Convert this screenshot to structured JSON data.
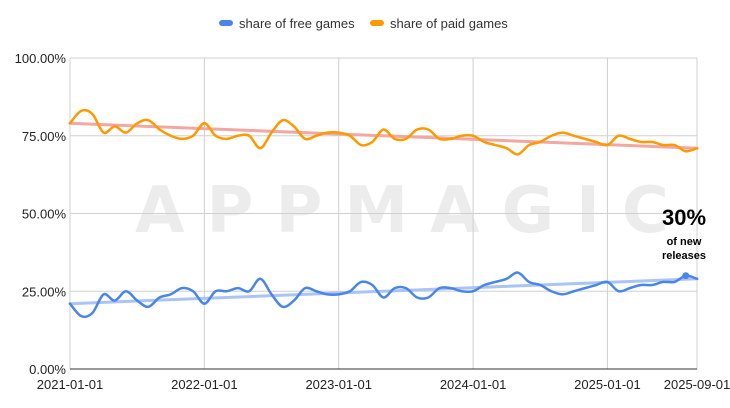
{
  "chart_data": {
    "type": "line",
    "title": "",
    "xlabel": "",
    "ylabel": "",
    "x_ticks": [
      "2021-01-01",
      "2022-01-01",
      "2023-01-01",
      "2024-01-01",
      "2025-01-01",
      "2025-09-01"
    ],
    "y_ticks": [
      "0.00%",
      "25.00%",
      "50.00%",
      "75.00%",
      "100.00%"
    ],
    "ylim": [
      0,
      100
    ],
    "xlim": [
      "2021-01-01",
      "2025-09-01"
    ],
    "grid": true,
    "legend_position": "top-center",
    "watermark": "APPMAGIC",
    "callout": {
      "value": "30%",
      "line1": "of new",
      "line2": "releases"
    },
    "x": [
      "2021-01",
      "2021-02",
      "2021-03",
      "2021-04",
      "2021-05",
      "2021-06",
      "2021-07",
      "2021-08",
      "2021-09",
      "2021-10",
      "2021-11",
      "2021-12",
      "2022-01",
      "2022-02",
      "2022-03",
      "2022-04",
      "2022-05",
      "2022-06",
      "2022-07",
      "2022-08",
      "2022-09",
      "2022-10",
      "2022-11",
      "2022-12",
      "2023-01",
      "2023-02",
      "2023-03",
      "2023-04",
      "2023-05",
      "2023-06",
      "2023-07",
      "2023-08",
      "2023-09",
      "2023-10",
      "2023-11",
      "2023-12",
      "2024-01",
      "2024-02",
      "2024-03",
      "2024-04",
      "2024-05",
      "2024-06",
      "2024-07",
      "2024-08",
      "2024-09",
      "2024-10",
      "2024-11",
      "2024-12",
      "2025-01",
      "2025-02",
      "2025-03",
      "2025-04",
      "2025-05",
      "2025-06",
      "2025-07",
      "2025-08",
      "2025-09"
    ],
    "series": [
      {
        "name": "share of free games",
        "color": "#4a86e8",
        "values": [
          21,
          17,
          18,
          24,
          22,
          25,
          22,
          20,
          23,
          24,
          26,
          25,
          21,
          25,
          25,
          26,
          25,
          29,
          24,
          20,
          22,
          26,
          25,
          24,
          24,
          25,
          28,
          27,
          23,
          26,
          26,
          23,
          23,
          26,
          26,
          25,
          25,
          27,
          28,
          29,
          31,
          28,
          27,
          25,
          24,
          25,
          26,
          27,
          28,
          25,
          26,
          27,
          27,
          28,
          28,
          30,
          29
        ]
      },
      {
        "name": "share of paid games",
        "color": "#ff9900",
        "values": [
          79,
          83,
          82,
          76,
          78,
          76,
          79,
          80,
          77,
          75,
          74,
          75,
          79,
          75,
          74,
          75,
          75,
          71,
          76,
          80,
          78,
          74,
          75,
          76,
          76,
          75,
          72,
          73,
          77,
          74,
          74,
          77,
          77,
          74,
          74,
          75,
          75,
          73,
          72,
          71,
          69,
          72,
          73,
          75,
          76,
          75,
          74,
          73,
          72,
          75,
          74,
          73,
          73,
          72,
          72,
          70,
          71
        ]
      }
    ],
    "trendlines": [
      {
        "series": "share of free games",
        "color": "#aac4f5",
        "start": 21,
        "end": 29
      },
      {
        "series": "share of paid games",
        "color": "#f2a7a2",
        "start": 79,
        "end": 71
      }
    ],
    "highlight_point": {
      "series": "share of free games",
      "x": "2025-08",
      "y": 30
    }
  }
}
